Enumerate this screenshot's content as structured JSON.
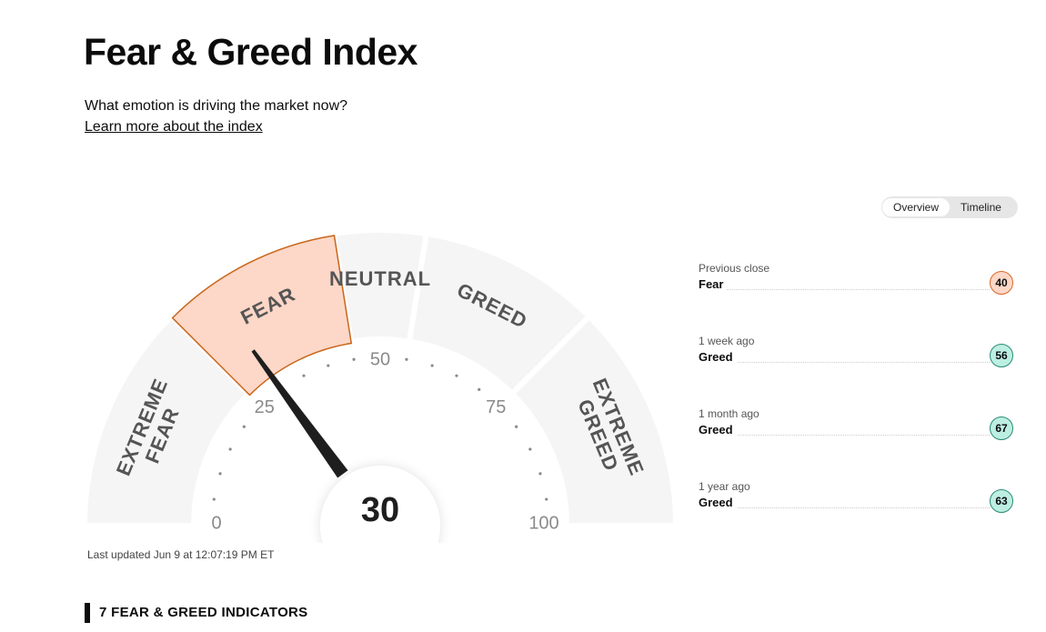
{
  "header": {
    "title": "Fear & Greed Index",
    "subtitle": "What emotion is driving the market now?",
    "link": "Learn more about the index"
  },
  "tabs": [
    "Overview",
    "Timeline"
  ],
  "gauge": {
    "value": 30,
    "ticks": [
      0,
      25,
      50,
      75,
      100
    ],
    "segments": [
      {
        "label": "EXTREME FEAR",
        "range": [
          0,
          25
        ]
      },
      {
        "label": "FEAR",
        "range": [
          25,
          45
        ]
      },
      {
        "label": "NEUTRAL",
        "range": [
          45,
          55
        ]
      },
      {
        "label": "GREED",
        "range": [
          55,
          75
        ]
      },
      {
        "label": "EXTREME GREED",
        "range": [
          75,
          100
        ]
      }
    ]
  },
  "last_updated": "Last updated Jun 9 at 12:07:19 PM ET",
  "history": [
    {
      "period": "Previous close",
      "rating": "Fear",
      "value": 40
    },
    {
      "period": "1 week ago",
      "rating": "Greed",
      "value": 56
    },
    {
      "period": "1 month ago",
      "rating": "Greed",
      "value": 67
    },
    {
      "period": "1 year ago",
      "rating": "Greed",
      "value": 63
    }
  ],
  "indicators_heading": "7 FEAR & GREED INDICATORS"
}
